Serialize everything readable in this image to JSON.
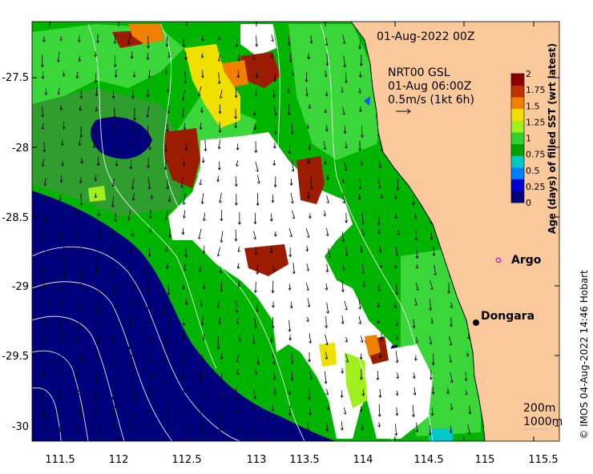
{
  "title_date": "01-Aug-2022 00Z",
  "current_info": {
    "line1": "NRT00 GSL",
    "line2": "01-Aug 06:00Z",
    "line3": "0.5m/s (1kt 6h)"
  },
  "colorbar": {
    "label": "Age (days) of filled SST (wrt latest)",
    "ticks": [
      "0",
      "0.25",
      "0.5",
      "0.75",
      "1",
      "1.25",
      "1.5",
      "1.75",
      "2"
    ],
    "colors": [
      "#00007a",
      "#0000d0",
      "#0080ff",
      "#00c8c8",
      "#00a000",
      "#30d030",
      "#a0f020",
      "#f0e000",
      "#f08000",
      "#c03000",
      "#8b0000"
    ]
  },
  "x_ticks": [
    "111.5",
    "112",
    "112.5",
    "113",
    "113.5",
    "114",
    "114.5",
    "115",
    "115.5"
  ],
  "y_ticks": [
    "-27.5",
    "-28",
    "-28.5",
    "-29",
    "-29.5",
    "-30"
  ],
  "places": {
    "argo": "Argo",
    "dongara": "Dongara"
  },
  "depth_legend": {
    "line1": "200m",
    "line2": "1000m"
  },
  "credit": "© IMOS 04-Aug-2022 14:46 Hobart",
  "colors": {
    "land": "#fac99b",
    "deep_navy": "#00007d",
    "green": "#00b400",
    "light_green": "#3ad63a",
    "olive_green": "#2f9e2f",
    "no_data": "#ffffff",
    "dark_red": "#9b1c00",
    "orange": "#f08000",
    "yellow": "#f0e000"
  }
}
